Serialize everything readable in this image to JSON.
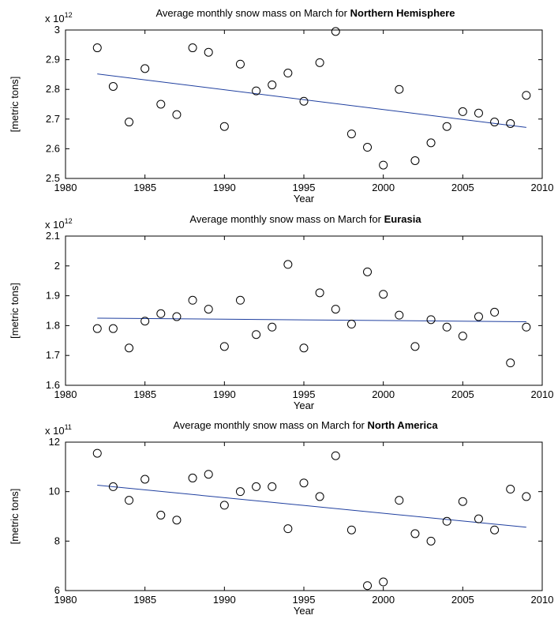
{
  "chart_data": [
    {
      "type": "scatter",
      "title_prefix": "Average monthly snow mass on March for ",
      "title_region": "Northern Hemisphere",
      "xlabel": "Year",
      "ylabel": "[metric tons]",
      "exponent_base": "x 10",
      "exponent_power": "12",
      "xlim": [
        1980,
        2010
      ],
      "ylim": [
        2.5,
        3.0
      ],
      "xticks": [
        "1980",
        "1985",
        "1990",
        "1995",
        "2000",
        "2005",
        "2010"
      ],
      "yticks": [
        "2.5",
        "2.6",
        "2.7",
        "2.8",
        "2.9",
        "3"
      ],
      "x": [
        1982,
        1983,
        1984,
        1985,
        1986,
        1987,
        1988,
        1989,
        1990,
        1991,
        1992,
        1993,
        1994,
        1995,
        1996,
        1997,
        1998,
        1999,
        2000,
        2001,
        2002,
        2003,
        2004,
        2005,
        2006,
        2007,
        2008,
        2009
      ],
      "y": [
        2.94,
        2.81,
        2.69,
        2.87,
        2.75,
        2.715,
        2.94,
        2.925,
        2.675,
        2.885,
        2.795,
        2.815,
        2.855,
        2.76,
        2.89,
        2.995,
        2.65,
        2.605,
        2.545,
        2.8,
        2.56,
        2.62,
        2.675,
        2.725,
        2.72,
        2.69,
        2.685,
        2.78
      ],
      "trend": {
        "x": [
          1982,
          2009
        ],
        "y": [
          2.852,
          2.672
        ]
      },
      "grid": false
    },
    {
      "type": "scatter",
      "title_prefix": "Average monthly snow mass on March for ",
      "title_region": "Eurasia",
      "xlabel": "Year",
      "ylabel": "[metric tons]",
      "exponent_base": "x 10",
      "exponent_power": "12",
      "xlim": [
        1980,
        2010
      ],
      "ylim": [
        1.6,
        2.1
      ],
      "xticks": [
        "1980",
        "1985",
        "1990",
        "1995",
        "2000",
        "2005",
        "2010"
      ],
      "yticks": [
        "1.6",
        "1.7",
        "1.8",
        "1.9",
        "2",
        "2.1"
      ],
      "x": [
        1982,
        1983,
        1984,
        1985,
        1986,
        1987,
        1988,
        1989,
        1990,
        1991,
        1992,
        1993,
        1994,
        1995,
        1996,
        1997,
        1998,
        1999,
        2000,
        2001,
        2002,
        2003,
        2004,
        2005,
        2006,
        2007,
        2008,
        2009
      ],
      "y": [
        1.79,
        1.79,
        1.725,
        1.815,
        1.84,
        1.83,
        1.885,
        1.855,
        1.73,
        1.885,
        1.77,
        1.795,
        2.005,
        1.725,
        1.91,
        1.855,
        1.805,
        1.98,
        1.905,
        1.835,
        1.73,
        1.82,
        1.795,
        1.765,
        1.83,
        1.845,
        1.675,
        1.795
      ],
      "trend": {
        "x": [
          1982,
          2009
        ],
        "y": [
          1.825,
          1.813
        ]
      },
      "grid": false
    },
    {
      "type": "scatter",
      "title_prefix": "Average monthly snow mass on March for ",
      "title_region": "North America",
      "xlabel": "Year",
      "ylabel": "[metric tons]",
      "exponent_base": "x 10",
      "exponent_power": "11",
      "xlim": [
        1980,
        2010
      ],
      "ylim": [
        6,
        12
      ],
      "xticks": [
        "1980",
        "1985",
        "1990",
        "1995",
        "2000",
        "2005",
        "2010"
      ],
      "yticks": [
        "6",
        "8",
        "10",
        "12"
      ],
      "x": [
        1982,
        1983,
        1984,
        1985,
        1986,
        1987,
        1988,
        1989,
        1990,
        1991,
        1992,
        1993,
        1994,
        1995,
        1996,
        1997,
        1998,
        1999,
        2000,
        2001,
        2002,
        2003,
        2004,
        2005,
        2006,
        2007,
        2008,
        2009
      ],
      "y": [
        11.55,
        10.2,
        9.65,
        10.5,
        9.05,
        8.85,
        10.55,
        10.7,
        9.45,
        10.0,
        10.2,
        10.2,
        8.5,
        10.35,
        9.8,
        11.45,
        8.45,
        6.2,
        6.35,
        9.65,
        8.3,
        8.0,
        8.8,
        9.6,
        8.9,
        8.45,
        10.1,
        9.8
      ],
      "trend": {
        "x": [
          1982,
          2009
        ],
        "y": [
          10.26,
          8.56
        ]
      },
      "grid": false
    }
  ]
}
